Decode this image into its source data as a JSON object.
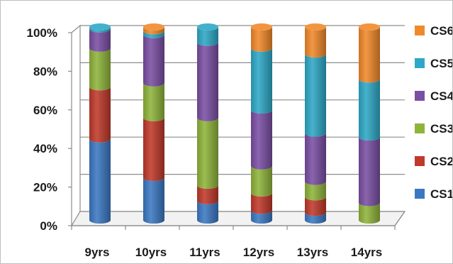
{
  "chart_data": {
    "type": "bar",
    "stacked": true,
    "percent": true,
    "style": "3d-cylinder",
    "categories": [
      "9yrs",
      "10yrs",
      "11yrs",
      "12yrs",
      "13yrs",
      "14yrs"
    ],
    "series": [
      {
        "name": "CS1",
        "color": "#3b78c2",
        "values": [
          42,
          22,
          10,
          5,
          4,
          0
        ]
      },
      {
        "name": "CS2",
        "color": "#c0392b",
        "values": [
          27,
          31,
          8,
          9,
          8,
          0
        ]
      },
      {
        "name": "CS3",
        "color": "#8fb43a",
        "values": [
          20,
          18,
          35,
          14,
          8,
          9
        ]
      },
      {
        "name": "CS4",
        "color": "#7a4fa3",
        "values": [
          10,
          25,
          39,
          29,
          25,
          34
        ]
      },
      {
        "name": "CS5",
        "color": "#2ea8c6",
        "values": [
          1,
          2,
          8,
          32,
          41,
          30
        ]
      },
      {
        "name": "CS6",
        "color": "#f0892a",
        "values": [
          0,
          2,
          0,
          11,
          14,
          27
        ]
      }
    ],
    "yticks": [
      "0%",
      "20%",
      "40%",
      "60%",
      "80%",
      "100%"
    ],
    "ylim": [
      0,
      100
    ],
    "grid": true,
    "legend": "right",
    "title": "",
    "xlabel": "",
    "ylabel": ""
  }
}
